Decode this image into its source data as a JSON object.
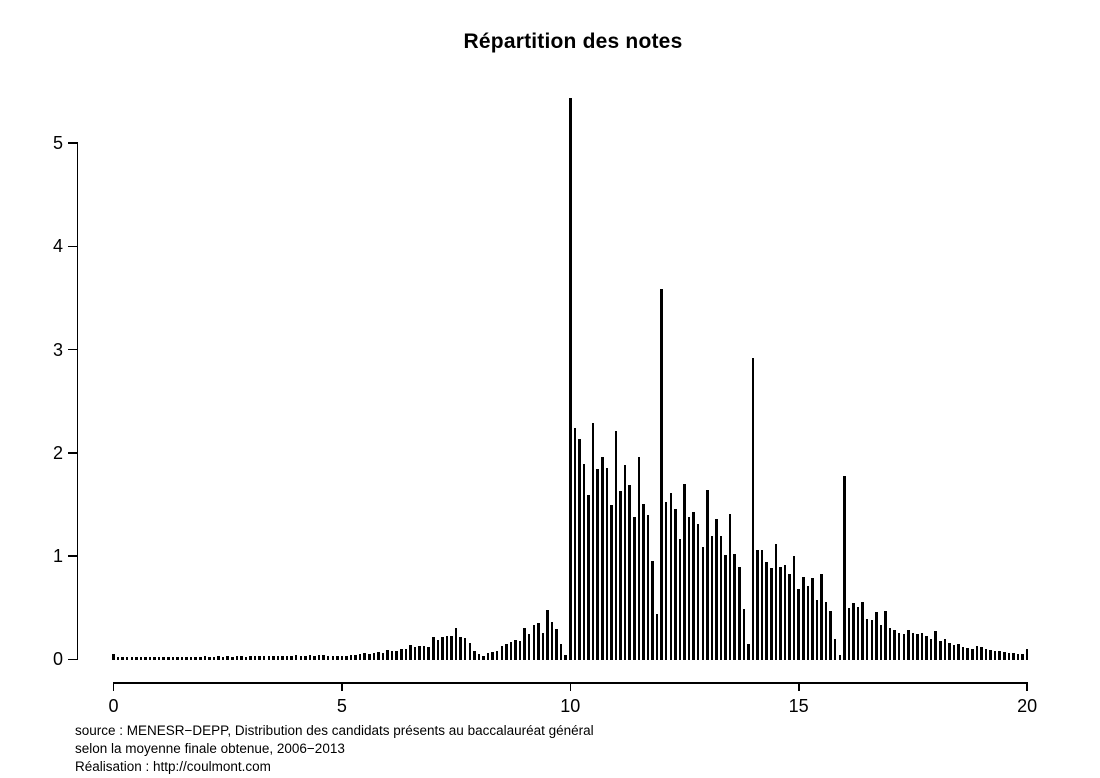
{
  "title": "Répartition des notes",
  "caption": {
    "line1": "source : MENESR−DEPP, Distribution des candidats présents au baccalauréat général",
    "line2": "selon la moyenne finale obtenue, 2006−2013",
    "line3": "Réalisation : http://coulmont.com"
  },
  "chart_data": {
    "type": "bar",
    "title": "Répartition des notes",
    "xlabel": "",
    "ylabel": "",
    "x_start": 0,
    "x_step": 0.1,
    "xlim": [
      0,
      20
    ],
    "ylim": [
      0,
      5.45
    ],
    "x_ticks": [
      0,
      5,
      10,
      15,
      20
    ],
    "y_ticks": [
      0,
      1,
      2,
      3,
      4,
      5
    ],
    "grid": false,
    "legend": "none",
    "bar_color": "#000000",
    "background_color": "#ffffff",
    "values": [
      0.055,
      0.02,
      0.02,
      0.02,
      0.02,
      0.025,
      0.02,
      0.02,
      0.02,
      0.02,
      0.025,
      0.02,
      0.02,
      0.025,
      0.02,
      0.025,
      0.025,
      0.02,
      0.025,
      0.02,
      0.03,
      0.025,
      0.025,
      0.03,
      0.025,
      0.03,
      0.025,
      0.03,
      0.03,
      0.025,
      0.03,
      0.03,
      0.03,
      0.03,
      0.03,
      0.035,
      0.03,
      0.035,
      0.03,
      0.035,
      0.04,
      0.035,
      0.035,
      0.04,
      0.035,
      0.04,
      0.04,
      0.035,
      0.03,
      0.03,
      0.035,
      0.035,
      0.04,
      0.04,
      0.05,
      0.06,
      0.055,
      0.06,
      0.07,
      0.06,
      0.09,
      0.08,
      0.085,
      0.1,
      0.1,
      0.135,
      0.12,
      0.125,
      0.13,
      0.12,
      0.22,
      0.19,
      0.215,
      0.23,
      0.23,
      0.305,
      0.22,
      0.21,
      0.16,
      0.085,
      0.05,
      0.035,
      0.06,
      0.07,
      0.085,
      0.125,
      0.145,
      0.165,
      0.19,
      0.18,
      0.3,
      0.25,
      0.33,
      0.35,
      0.26,
      0.48,
      0.36,
      0.29,
      0.15,
      0.04,
      5.44,
      2.24,
      2.13,
      1.89,
      1.59,
      2.29,
      1.84,
      1.96,
      1.85,
      1.49,
      2.21,
      1.63,
      1.88,
      1.69,
      1.38,
      1.96,
      1.5,
      1.4,
      0.95,
      0.44,
      3.59,
      1.52,
      1.61,
      1.46,
      1.17,
      1.7,
      1.38,
      1.43,
      1.31,
      1.09,
      1.64,
      1.19,
      1.36,
      1.19,
      1.01,
      1.41,
      1.02,
      0.89,
      0.49,
      0.15,
      2.92,
      1.06,
      1.06,
      0.94,
      0.88,
      1.12,
      0.89,
      0.91,
      0.83,
      1.0,
      0.68,
      0.8,
      0.71,
      0.79,
      0.57,
      0.83,
      0.56,
      0.47,
      0.2,
      0.04,
      1.78,
      0.5,
      0.55,
      0.51,
      0.56,
      0.39,
      0.38,
      0.46,
      0.33,
      0.47,
      0.3,
      0.28,
      0.26,
      0.25,
      0.28,
      0.26,
      0.25,
      0.26,
      0.23,
      0.2,
      0.27,
      0.18,
      0.2,
      0.16,
      0.14,
      0.15,
      0.12,
      0.11,
      0.1,
      0.13,
      0.12,
      0.1,
      0.09,
      0.08,
      0.08,
      0.07,
      0.06,
      0.06,
      0.055,
      0.05,
      0.1
    ]
  }
}
